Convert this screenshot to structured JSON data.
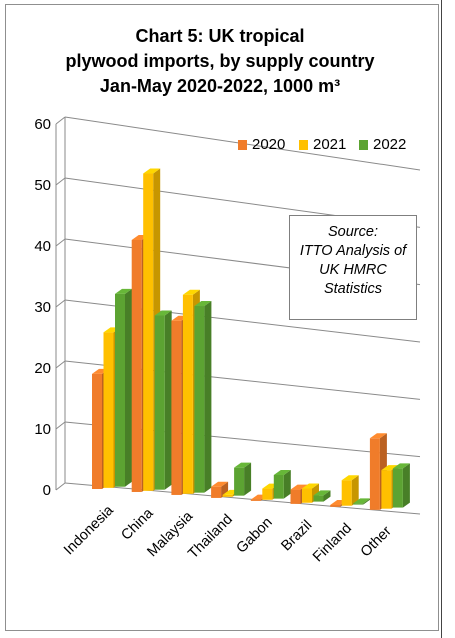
{
  "title": {
    "line1": "Chart 5: UK tropical",
    "line2": "plywood imports, by supply country",
    "line3": "Jan-May 2020-2022, 1000 m³"
  },
  "source_box": {
    "line1": "Source:",
    "line2": "ITTO Analysis of",
    "line3": "UK HMRC",
    "line4": "Statistics"
  },
  "chart_data": {
    "type": "bar",
    "categories": [
      "Indonesia",
      "China",
      "Malaysia",
      "Thailand",
      "Gabon",
      "Brazil",
      "Finland",
      "Other"
    ],
    "series": [
      {
        "name": "2020",
        "color": "#f07c2a",
        "values": [
          18.5,
          40.5,
          28,
          1.8,
          0.2,
          2.3,
          0.3,
          11.5
        ]
      },
      {
        "name": "2021",
        "color": "#ffc000",
        "values": [
          25,
          51,
          32,
          0.3,
          1.8,
          2.3,
          4.1,
          6.2
        ]
      },
      {
        "name": "2022",
        "color": "#5ca332",
        "values": [
          31,
          28,
          30,
          4.5,
          3.8,
          1,
          0.2,
          6.3
        ]
      }
    ],
    "y_ticks": [
      "0",
      "10",
      "20",
      "30",
      "40",
      "50",
      "60"
    ],
    "ylim": [
      0,
      60
    ],
    "grid": true,
    "legend": "top-right",
    "style": "3d-clustered-column"
  }
}
